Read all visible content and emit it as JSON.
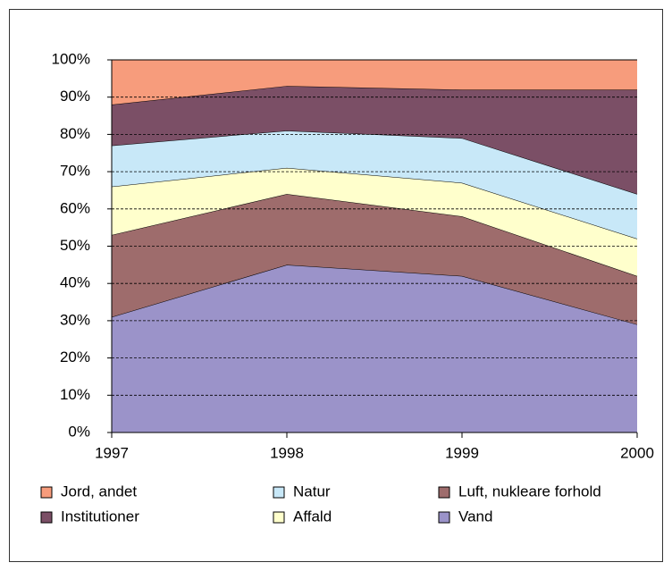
{
  "chart_data": {
    "type": "stacked_area",
    "categories": [
      "1997",
      "1998",
      "1999",
      "2000"
    ],
    "series": [
      {
        "name": "Vand",
        "color": "#9b93c9",
        "values": [
          31,
          45,
          42,
          29
        ]
      },
      {
        "name": "Luft, nukleare forhold",
        "color": "#9e6c6c",
        "values": [
          22,
          19,
          16,
          13
        ]
      },
      {
        "name": "Affald",
        "color": "#ffffcc",
        "values": [
          13,
          7,
          9,
          10
        ]
      },
      {
        "name": "Natur",
        "color": "#c8e8f8",
        "values": [
          11,
          10,
          12,
          12
        ]
      },
      {
        "name": "Institutioner",
        "color": "#7b4f66",
        "values": [
          11,
          12,
          13,
          28
        ]
      },
      {
        "name": "Jord, andet",
        "color": "#f79c7c",
        "values": [
          12,
          7,
          8,
          8
        ]
      }
    ],
    "ylim": [
      0,
      100
    ],
    "yticks": [
      {
        "value": 0,
        "label": "0%"
      },
      {
        "value": 10,
        "label": "10%"
      },
      {
        "value": 20,
        "label": "20%"
      },
      {
        "value": 30,
        "label": "30%"
      },
      {
        "value": 40,
        "label": "40%"
      },
      {
        "value": 50,
        "label": "50%"
      },
      {
        "value": 60,
        "label": "60%"
      },
      {
        "value": 70,
        "label": "70%"
      },
      {
        "value": 80,
        "label": "80%"
      },
      {
        "value": 90,
        "label": "90%"
      },
      {
        "value": 100,
        "label": "100%"
      }
    ],
    "grid": true
  }
}
